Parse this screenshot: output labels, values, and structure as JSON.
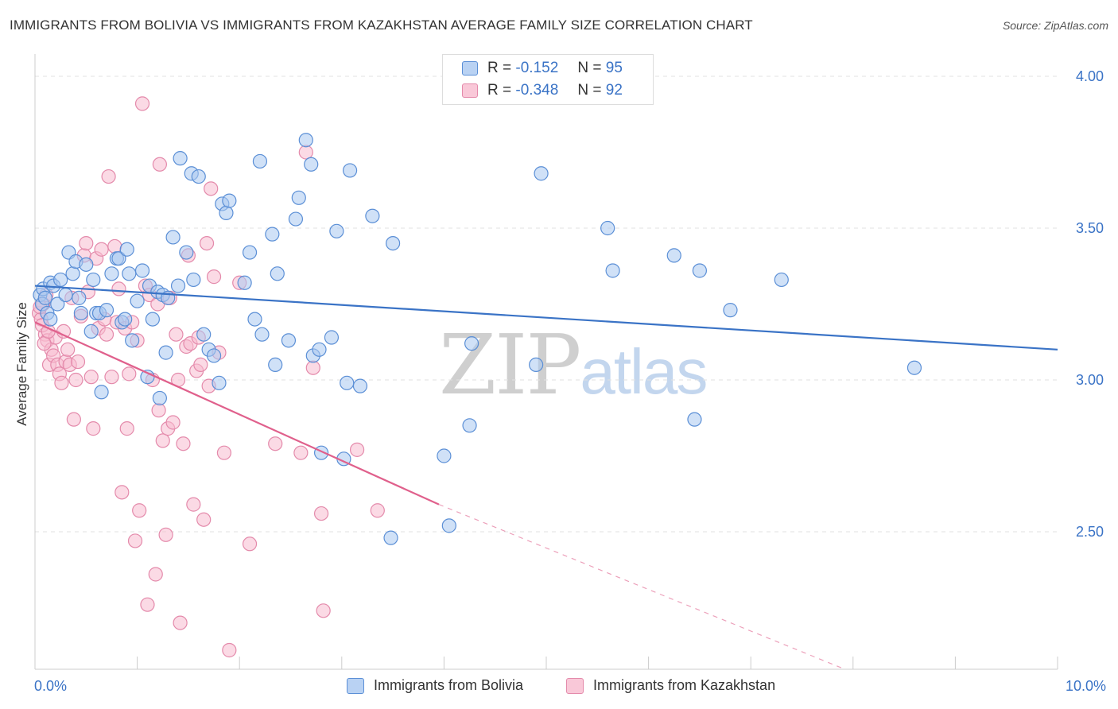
{
  "title": "IMMIGRANTS FROM BOLIVIA VS IMMIGRANTS FROM KAZAKHSTAN AVERAGE FAMILY SIZE CORRELATION CHART",
  "source": "Source: ZipAtlas.com",
  "watermark": {
    "zip": "ZIP",
    "atlas": "atlas"
  },
  "colors": {
    "bolivia_fill": "#aac8f0",
    "bolivia_stroke": "#5b8fd6",
    "bolivia_line": "#3a73c6",
    "kazakhstan_fill": "#f7bccf",
    "kazakhstan_stroke": "#e48aab",
    "kazakhstan_line": "#e0608c",
    "value_text": "#3a73c6",
    "grid": "#e2e2e2"
  },
  "stats": {
    "bolivia": {
      "r_label": "R =",
      "r_value": "-0.152",
      "n_label": "N =",
      "n_value": "95"
    },
    "kazakhstan": {
      "r_label": "R =",
      "r_value": "-0.348",
      "n_label": "N =",
      "n_value": "92"
    }
  },
  "legend": {
    "bolivia": "Immigrants from Bolivia",
    "kazakhstan": "Immigrants from Kazakhstan"
  },
  "chart_data": {
    "type": "scatter",
    "title": "IMMIGRANTS FROM BOLIVIA VS IMMIGRANTS FROM KAZAKHSTAN AVERAGE FAMILY SIZE CORRELATION CHART",
    "xlabel": "",
    "ylabel": "Average Family Size",
    "x_tick_labels": [
      "0.0%",
      "10.0%"
    ],
    "y_tick_labels": [
      "2.50",
      "3.00",
      "3.50",
      "4.00"
    ],
    "xlim": [
      0,
      10
    ],
    "ylim": [
      2.05,
      4.08
    ],
    "grid": true,
    "legend_position": "bottom",
    "series": [
      {
        "name": "Immigrants from Bolivia",
        "r": -0.152,
        "n": 95,
        "trend": {
          "x": [
            0.0,
            10.0
          ],
          "y": [
            3.31,
            3.1
          ]
        },
        "points": [
          [
            0.05,
            3.28
          ],
          [
            0.07,
            3.25
          ],
          [
            0.08,
            3.3
          ],
          [
            0.1,
            3.27
          ],
          [
            0.12,
            3.22
          ],
          [
            0.15,
            3.2
          ],
          [
            0.15,
            3.32
          ],
          [
            0.18,
            3.31
          ],
          [
            0.22,
            3.25
          ],
          [
            0.25,
            3.33
          ],
          [
            0.3,
            3.28
          ],
          [
            0.33,
            3.42
          ],
          [
            0.37,
            3.35
          ],
          [
            0.4,
            3.39
          ],
          [
            0.43,
            3.27
          ],
          [
            0.45,
            3.22
          ],
          [
            0.5,
            3.38
          ],
          [
            0.55,
            3.16
          ],
          [
            0.57,
            3.33
          ],
          [
            0.6,
            3.22
          ],
          [
            0.63,
            3.22
          ],
          [
            0.65,
            2.96
          ],
          [
            0.7,
            3.23
          ],
          [
            0.75,
            3.35
          ],
          [
            0.8,
            3.4
          ],
          [
            0.82,
            3.4
          ],
          [
            0.85,
            3.19
          ],
          [
            0.88,
            3.2
          ],
          [
            0.9,
            3.43
          ],
          [
            0.92,
            3.35
          ],
          [
            0.95,
            3.13
          ],
          [
            1.0,
            3.26
          ],
          [
            1.05,
            3.36
          ],
          [
            1.1,
            3.01
          ],
          [
            1.12,
            3.31
          ],
          [
            1.15,
            3.2
          ],
          [
            1.2,
            3.29
          ],
          [
            1.22,
            2.94
          ],
          [
            1.25,
            3.28
          ],
          [
            1.28,
            3.09
          ],
          [
            1.3,
            3.27
          ],
          [
            1.35,
            3.47
          ],
          [
            1.4,
            3.31
          ],
          [
            1.42,
            3.73
          ],
          [
            1.48,
            3.42
          ],
          [
            1.53,
            3.68
          ],
          [
            1.55,
            3.33
          ],
          [
            1.6,
            3.67
          ],
          [
            1.65,
            3.15
          ],
          [
            1.7,
            3.1
          ],
          [
            1.75,
            3.08
          ],
          [
            1.8,
            2.99
          ],
          [
            1.83,
            3.58
          ],
          [
            1.87,
            3.55
          ],
          [
            1.9,
            3.59
          ],
          [
            2.05,
            3.32
          ],
          [
            2.1,
            3.42
          ],
          [
            2.15,
            3.2
          ],
          [
            2.2,
            3.72
          ],
          [
            2.22,
            3.15
          ],
          [
            2.32,
            3.48
          ],
          [
            2.35,
            3.05
          ],
          [
            2.37,
            3.35
          ],
          [
            2.48,
            3.13
          ],
          [
            2.55,
            3.53
          ],
          [
            2.58,
            3.6
          ],
          [
            2.65,
            3.79
          ],
          [
            2.7,
            3.71
          ],
          [
            2.72,
            3.08
          ],
          [
            2.78,
            3.1
          ],
          [
            2.8,
            2.76
          ],
          [
            2.9,
            3.14
          ],
          [
            2.95,
            3.49
          ],
          [
            3.02,
            2.74
          ],
          [
            3.05,
            2.99
          ],
          [
            3.08,
            3.69
          ],
          [
            3.18,
            2.98
          ],
          [
            3.3,
            3.54
          ],
          [
            3.48,
            2.48
          ],
          [
            3.5,
            3.45
          ],
          [
            4.0,
            2.75
          ],
          [
            4.05,
            2.52
          ],
          [
            4.25,
            2.85
          ],
          [
            4.27,
            3.12
          ],
          [
            4.9,
            3.05
          ],
          [
            4.95,
            3.68
          ],
          [
            5.6,
            3.5
          ],
          [
            5.65,
            3.36
          ],
          [
            6.25,
            3.41
          ],
          [
            6.45,
            2.87
          ],
          [
            6.5,
            3.36
          ],
          [
            6.8,
            3.23
          ],
          [
            7.3,
            3.33
          ],
          [
            8.6,
            3.04
          ]
        ]
      },
      {
        "name": "Immigrants from Kazakhstan",
        "r": -0.348,
        "n": 92,
        "trend": {
          "x": [
            0.0,
            3.95
          ],
          "y": [
            3.19,
            2.59
          ]
        },
        "trend_extension": {
          "x": [
            3.95,
            7.9
          ],
          "y": [
            2.59,
            2.05
          ]
        },
        "points": [
          [
            0.04,
            3.22
          ],
          [
            0.06,
            3.2
          ],
          [
            0.08,
            3.25
          ],
          [
            0.1,
            3.15
          ],
          [
            0.12,
            3.13
          ],
          [
            0.14,
            3.05
          ],
          [
            0.16,
            3.1
          ],
          [
            0.18,
            3.08
          ],
          [
            0.2,
            3.14
          ],
          [
            0.22,
            3.05
          ],
          [
            0.24,
            3.02
          ],
          [
            0.26,
            2.99
          ],
          [
            0.28,
            3.16
          ],
          [
            0.3,
            3.06
          ],
          [
            0.32,
            3.1
          ],
          [
            0.34,
            3.05
          ],
          [
            0.36,
            3.27
          ],
          [
            0.38,
            2.87
          ],
          [
            0.4,
            3.0
          ],
          [
            0.42,
            3.06
          ],
          [
            0.45,
            3.21
          ],
          [
            0.48,
            3.41
          ],
          [
            0.5,
            3.45
          ],
          [
            0.52,
            3.29
          ],
          [
            0.55,
            3.01
          ],
          [
            0.57,
            2.84
          ],
          [
            0.6,
            3.4
          ],
          [
            0.62,
            3.17
          ],
          [
            0.65,
            3.43
          ],
          [
            0.68,
            3.2
          ],
          [
            0.7,
            3.15
          ],
          [
            0.72,
            3.67
          ],
          [
            0.75,
            3.01
          ],
          [
            0.78,
            3.44
          ],
          [
            0.8,
            3.19
          ],
          [
            0.82,
            3.3
          ],
          [
            0.85,
            2.63
          ],
          [
            0.88,
            3.17
          ],
          [
            0.9,
            2.84
          ],
          [
            0.92,
            3.02
          ],
          [
            0.95,
            3.19
          ],
          [
            0.98,
            2.47
          ],
          [
            1.0,
            3.13
          ],
          [
            1.02,
            2.57
          ],
          [
            1.05,
            3.91
          ],
          [
            1.08,
            3.31
          ],
          [
            1.1,
            2.26
          ],
          [
            1.12,
            3.28
          ],
          [
            1.15,
            3.0
          ],
          [
            1.18,
            2.36
          ],
          [
            1.2,
            3.25
          ],
          [
            1.22,
            3.71
          ],
          [
            1.25,
            2.8
          ],
          [
            1.28,
            2.49
          ],
          [
            1.3,
            2.84
          ],
          [
            1.32,
            3.27
          ],
          [
            1.35,
            2.86
          ],
          [
            1.38,
            3.15
          ],
          [
            1.4,
            3.0
          ],
          [
            1.42,
            2.2
          ],
          [
            1.45,
            2.79
          ],
          [
            1.48,
            3.11
          ],
          [
            1.5,
            3.41
          ],
          [
            1.52,
            3.12
          ],
          [
            1.55,
            2.59
          ],
          [
            1.58,
            3.03
          ],
          [
            1.6,
            3.14
          ],
          [
            1.62,
            3.05
          ],
          [
            1.65,
            2.54
          ],
          [
            1.68,
            3.45
          ],
          [
            1.7,
            2.98
          ],
          [
            1.72,
            3.63
          ],
          [
            1.75,
            3.34
          ],
          [
            1.8,
            3.09
          ],
          [
            1.85,
            2.76
          ],
          [
            1.9,
            2.11
          ],
          [
            2.0,
            3.32
          ],
          [
            2.1,
            2.46
          ],
          [
            2.35,
            2.79
          ],
          [
            2.6,
            2.76
          ],
          [
            2.8,
            2.56
          ],
          [
            2.82,
            2.24
          ],
          [
            3.15,
            2.77
          ],
          [
            3.35,
            2.57
          ],
          [
            2.65,
            3.75
          ],
          [
            0.05,
            3.24
          ],
          [
            0.07,
            3.18
          ],
          [
            0.09,
            3.12
          ],
          [
            0.11,
            3.28
          ],
          [
            0.13,
            3.16
          ],
          [
            1.21,
            2.9
          ],
          [
            2.72,
            3.04
          ]
        ]
      }
    ]
  }
}
